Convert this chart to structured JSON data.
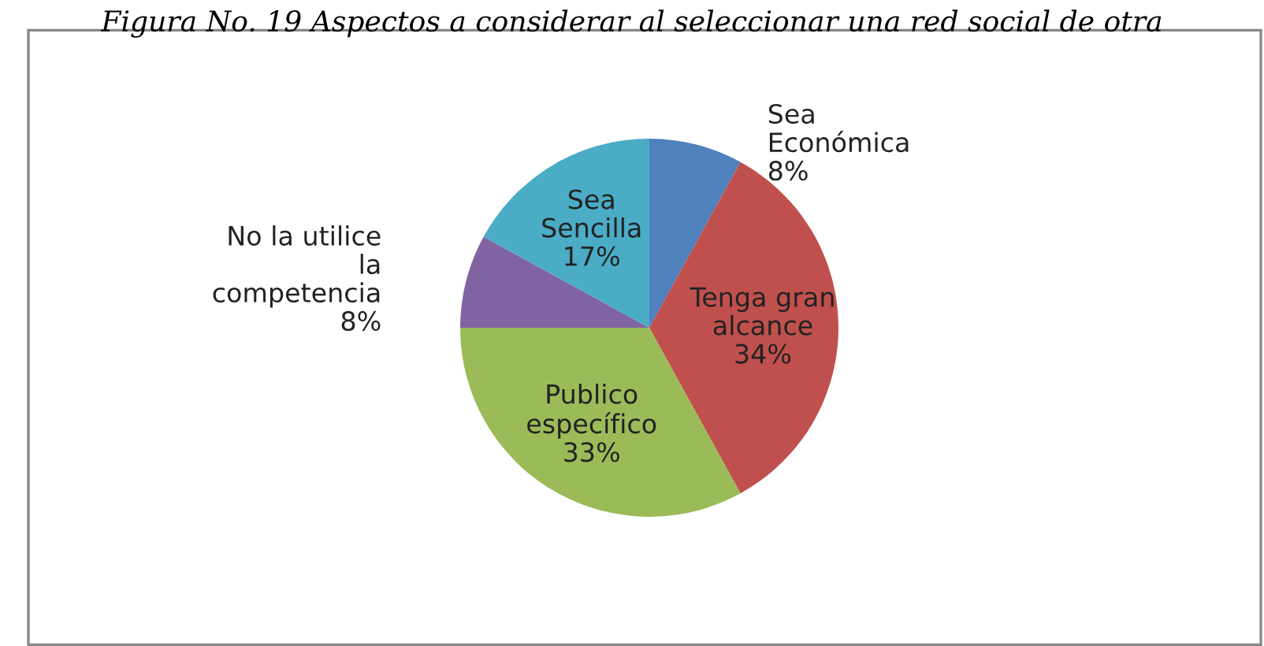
{
  "chart_data": {
    "type": "pie",
    "title": "Figura No. 19 Aspectos a considerar al seleccionar una red social de otra",
    "categories": [
      "Sea\nEconómica",
      "Tenga gran\nalcance",
      "Publico\nespecífico",
      "No la utilice\nla\ncompetencia",
      "Sea\nSencilla"
    ],
    "values": [
      8,
      34,
      33,
      8,
      17
    ],
    "value_labels": [
      "8%",
      "34%",
      "33%",
      "8%",
      "17%"
    ],
    "colors": [
      "#4f81bd",
      "#c0504d",
      "#9bbb59",
      "#8064a2",
      "#4bacc6"
    ],
    "legend": false
  }
}
